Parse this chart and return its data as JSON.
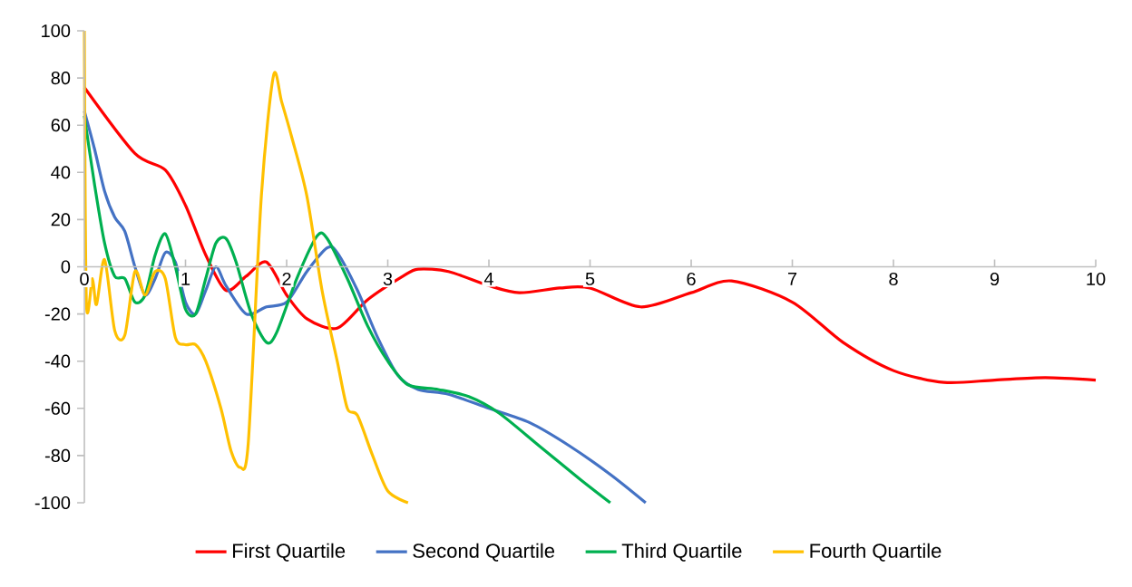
{
  "chart_data": {
    "type": "line",
    "xlim": [
      0,
      10
    ],
    "ylim": [
      -100,
      100
    ],
    "xticks": [
      0,
      1,
      2,
      3,
      4,
      5,
      6,
      7,
      8,
      9,
      10
    ],
    "yticks": [
      -100,
      -80,
      -60,
      -40,
      -20,
      0,
      20,
      40,
      60,
      80,
      100
    ],
    "legend": "bottom",
    "grid": false,
    "series": [
      {
        "name": "First Quartile",
        "color": "#ff0000",
        "x": [
          0,
          0.5,
          0.8,
          1.0,
          1.2,
          1.4,
          1.6,
          1.8,
          2.0,
          2.2,
          2.5,
          2.8,
          3.15,
          3.3,
          3.6,
          4.0,
          4.3,
          4.7,
          5.0,
          5.5,
          6.0,
          6.4,
          7.0,
          7.5,
          8.0,
          8.5,
          9.0,
          9.5,
          10.0
        ],
        "values": [
          76,
          48,
          41,
          26,
          5,
          -10,
          -4,
          2,
          -12,
          -22,
          -26,
          -14,
          -4,
          -1,
          -2,
          -8,
          -11,
          -9,
          -9,
          -17,
          -11,
          -6,
          -15,
          -32,
          -44,
          -49,
          -48,
          -47,
          -48
        ]
      },
      {
        "name": "Second Quartile",
        "color": "#4472c4",
        "x": [
          0,
          0.1,
          0.2,
          0.3,
          0.4,
          0.5,
          0.6,
          0.7,
          0.8,
          0.9,
          1.0,
          1.1,
          1.2,
          1.3,
          1.4,
          1.6,
          1.8,
          2.0,
          2.2,
          2.4,
          2.5,
          2.7,
          2.9,
          3.1,
          3.3,
          3.6,
          4.0,
          4.4,
          4.8,
          5.2,
          5.55
        ],
        "values": [
          66,
          50,
          32,
          21,
          15,
          0,
          -12,
          -5,
          6,
          2,
          -15,
          -20,
          -10,
          0,
          -8,
          -20,
          -17,
          -15,
          -2,
          8,
          6,
          -10,
          -30,
          -46,
          -52,
          -54,
          -60,
          -66,
          -76,
          -88,
          -100
        ]
      },
      {
        "name": "Third Quartile",
        "color": "#00b050",
        "x": [
          0,
          0.1,
          0.2,
          0.3,
          0.4,
          0.5,
          0.6,
          0.7,
          0.8,
          0.9,
          1.0,
          1.1,
          1.2,
          1.3,
          1.4,
          1.5,
          1.65,
          1.8,
          1.9,
          2.1,
          2.3,
          2.4,
          2.6,
          2.8,
          3.0,
          3.2,
          3.5,
          3.8,
          4.1,
          4.5,
          4.9,
          5.2
        ],
        "values": [
          64,
          35,
          10,
          -4,
          -5,
          -15,
          -12,
          5,
          14,
          0,
          -18,
          -20,
          -5,
          10,
          12,
          2,
          -20,
          -32,
          -28,
          -5,
          13,
          12,
          -5,
          -25,
          -40,
          -50,
          -52,
          -55,
          -62,
          -76,
          -90,
          -100
        ]
      },
      {
        "name": "Fourth Quartile",
        "color": "#ffc000",
        "x": [
          0,
          0.02,
          0.08,
          0.12,
          0.2,
          0.3,
          0.4,
          0.5,
          0.6,
          0.7,
          0.8,
          0.9,
          1.0,
          1.1,
          1.2,
          1.35,
          1.45,
          1.54,
          1.62,
          1.75,
          1.87,
          1.95,
          2.05,
          2.2,
          2.35,
          2.5,
          2.6,
          2.7,
          2.85,
          3.0,
          3.2
        ],
        "values": [
          100,
          -15,
          -5,
          -16,
          3,
          -27,
          -29,
          -2,
          -12,
          -2,
          -5,
          -30,
          -33,
          -33,
          -40,
          -60,
          -78,
          -85,
          -75,
          30,
          81,
          70,
          55,
          30,
          -10,
          -40,
          -60,
          -63,
          -80,
          -95,
          -100
        ]
      }
    ]
  }
}
